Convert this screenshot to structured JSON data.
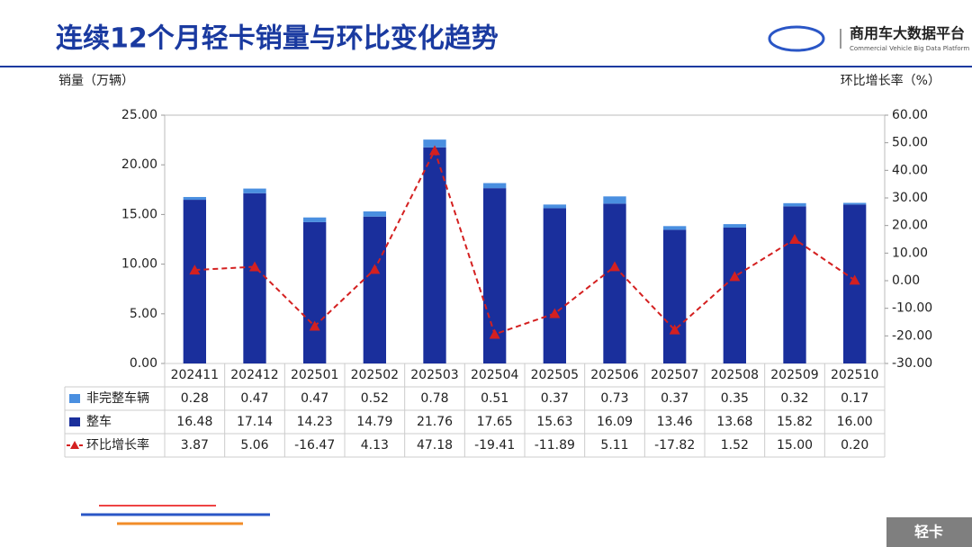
{
  "header": {
    "title": "连续12个月轻卡销量与环比变化趋势",
    "logo_name": "商用车大数据平台",
    "logo_subtitle": "Commercial Vehicle Big Data Platform"
  },
  "footer": {
    "tag": "轻卡"
  },
  "chart_data": {
    "type": "bar",
    "y_label": "销量（万辆）",
    "y2_label": "环比增长率（%）",
    "categories": [
      "202411",
      "202412",
      "202501",
      "202502",
      "202503",
      "202504",
      "202505",
      "202506",
      "202507",
      "202508",
      "202509",
      "202510"
    ],
    "series": [
      {
        "name": "非完整车辆",
        "type": "bar",
        "color": "#4a8fe0",
        "values": [
          0.28,
          0.47,
          0.47,
          0.52,
          0.78,
          0.51,
          0.37,
          0.73,
          0.37,
          0.35,
          0.32,
          0.17
        ],
        "value_labels": [
          "0.28",
          "0.47",
          "0.47",
          "0.52",
          "0.78",
          "0.51",
          "0.37",
          "0.73",
          "0.37",
          "0.35",
          "0.32",
          "0.17"
        ]
      },
      {
        "name": "整车",
        "type": "bar",
        "color": "#1a2f9c",
        "values": [
          16.48,
          17.14,
          14.23,
          14.79,
          21.76,
          17.65,
          15.63,
          16.09,
          13.46,
          13.68,
          15.82,
          16.0
        ],
        "value_labels": [
          "16.48",
          "17.14",
          "14.23",
          "14.79",
          "21.76",
          "17.65",
          "15.63",
          "16.09",
          "13.46",
          "13.68",
          "15.82",
          "16.00"
        ]
      },
      {
        "name": "环比增长率",
        "type": "line",
        "axis": "y2",
        "color": "#d42020",
        "values": [
          3.87,
          5.06,
          -16.47,
          4.13,
          47.18,
          -19.41,
          -11.89,
          5.11,
          -17.82,
          1.52,
          15.0,
          0.2
        ],
        "value_labels": [
          "3.87",
          "5.06",
          "-16.47",
          "4.13",
          "47.18",
          "-19.41",
          "-11.89",
          "5.11",
          "-17.82",
          "1.52",
          "15.00",
          "0.20"
        ]
      }
    ],
    "ylim": [
      0,
      25
    ],
    "yticks": [
      {
        "value": 0,
        "label": "0.00"
      },
      {
        "value": 5,
        "label": "5.00"
      },
      {
        "value": 10,
        "label": "10.00"
      },
      {
        "value": 15,
        "label": "15.00"
      },
      {
        "value": 20,
        "label": "20.00"
      },
      {
        "value": 25,
        "label": "25.00"
      }
    ],
    "y2lim": [
      -30,
      60
    ],
    "y2ticks": [
      {
        "value": -30,
        "label": "-30.00"
      },
      {
        "value": -20,
        "label": "-20.00"
      },
      {
        "value": -10,
        "label": "-10.00"
      },
      {
        "value": 0,
        "label": "0.00"
      },
      {
        "value": 10,
        "label": "10.00"
      },
      {
        "value": 20,
        "label": "20.00"
      },
      {
        "value": 30,
        "label": "30.00"
      },
      {
        "value": 40,
        "label": "40.00"
      },
      {
        "value": 50,
        "label": "50.00"
      },
      {
        "value": 60,
        "label": "60.00"
      }
    ]
  }
}
